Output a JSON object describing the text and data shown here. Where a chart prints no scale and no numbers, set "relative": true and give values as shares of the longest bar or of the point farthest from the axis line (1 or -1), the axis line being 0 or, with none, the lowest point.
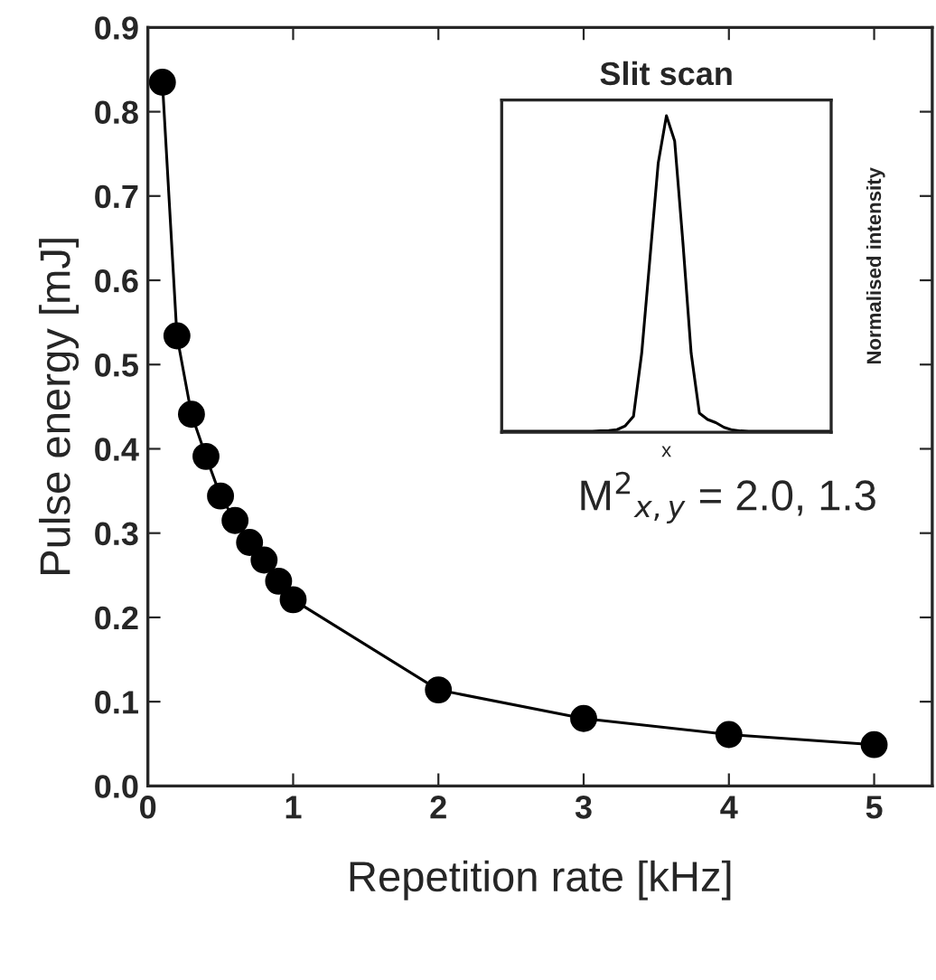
{
  "chart_data": [
    {
      "type": "line",
      "xlabel": "Repetition rate [kHz]",
      "ylabel": "Pulse energy [mJ]",
      "x": [
        0.1,
        0.2,
        0.3,
        0.4,
        0.5,
        0.6,
        0.7,
        0.8,
        0.9,
        1.0,
        2,
        3,
        4,
        5
      ],
      "series": [
        {
          "color": "#000000",
          "values": [
            0.835,
            0.534,
            0.441,
            0.391,
            0.344,
            0.315,
            0.289,
            0.268,
            0.243,
            0.221,
            0.114,
            0.08,
            0.061,
            0.049
          ]
        }
      ],
      "xlim": [
        0,
        5.4
      ],
      "xticks": [
        0,
        1,
        2,
        3,
        4,
        5
      ],
      "ylim": [
        0,
        0.9
      ],
      "yticks": [
        {
          "value": 0,
          "label": "0.0"
        },
        0.1,
        0.2,
        0.3,
        0.4,
        0.5,
        0.6,
        0.7,
        0.8,
        0.9
      ],
      "marker": "circle",
      "line_style": "solid",
      "grid": false,
      "legend": false,
      "annotations": [
        "M$^{2}$$_{x,y}$ = 2.0, 1.3"
      ]
    },
    {
      "type": "line",
      "title": "Slit scan",
      "xlabel": "x",
      "ylabel": "Normalised intensity",
      "relative": true,
      "categories": [
        null,
        null,
        null,
        null,
        null,
        null,
        null,
        null,
        null,
        null,
        null,
        null,
        null,
        null,
        null,
        null,
        null,
        null,
        null,
        null,
        null,
        null,
        null,
        null,
        null,
        null,
        null,
        null,
        null,
        null,
        null,
        null,
        null,
        null,
        null,
        null,
        null,
        null,
        null,
        null,
        null
      ],
      "series": [
        {
          "color": "#000000",
          "values": [
            0.003,
            0.003,
            0.003,
            0.003,
            0.003,
            0.003,
            0.003,
            0.003,
            0.003,
            0.003,
            0.003,
            0.003,
            0.004,
            0.005,
            0.008,
            0.02,
            0.05,
            0.25,
            0.55,
            0.85,
            1.0,
            0.92,
            0.6,
            0.25,
            0.06,
            0.04,
            0.03,
            0.015,
            0.007,
            0.004,
            0.003,
            0.003,
            0.003,
            0.003,
            0.003,
            0.003,
            0.003,
            0.003,
            0.003,
            0.003,
            0.003
          ]
        }
      ],
      "marker": "none",
      "line_style": "solid",
      "grid": false,
      "legend": false
    }
  ]
}
